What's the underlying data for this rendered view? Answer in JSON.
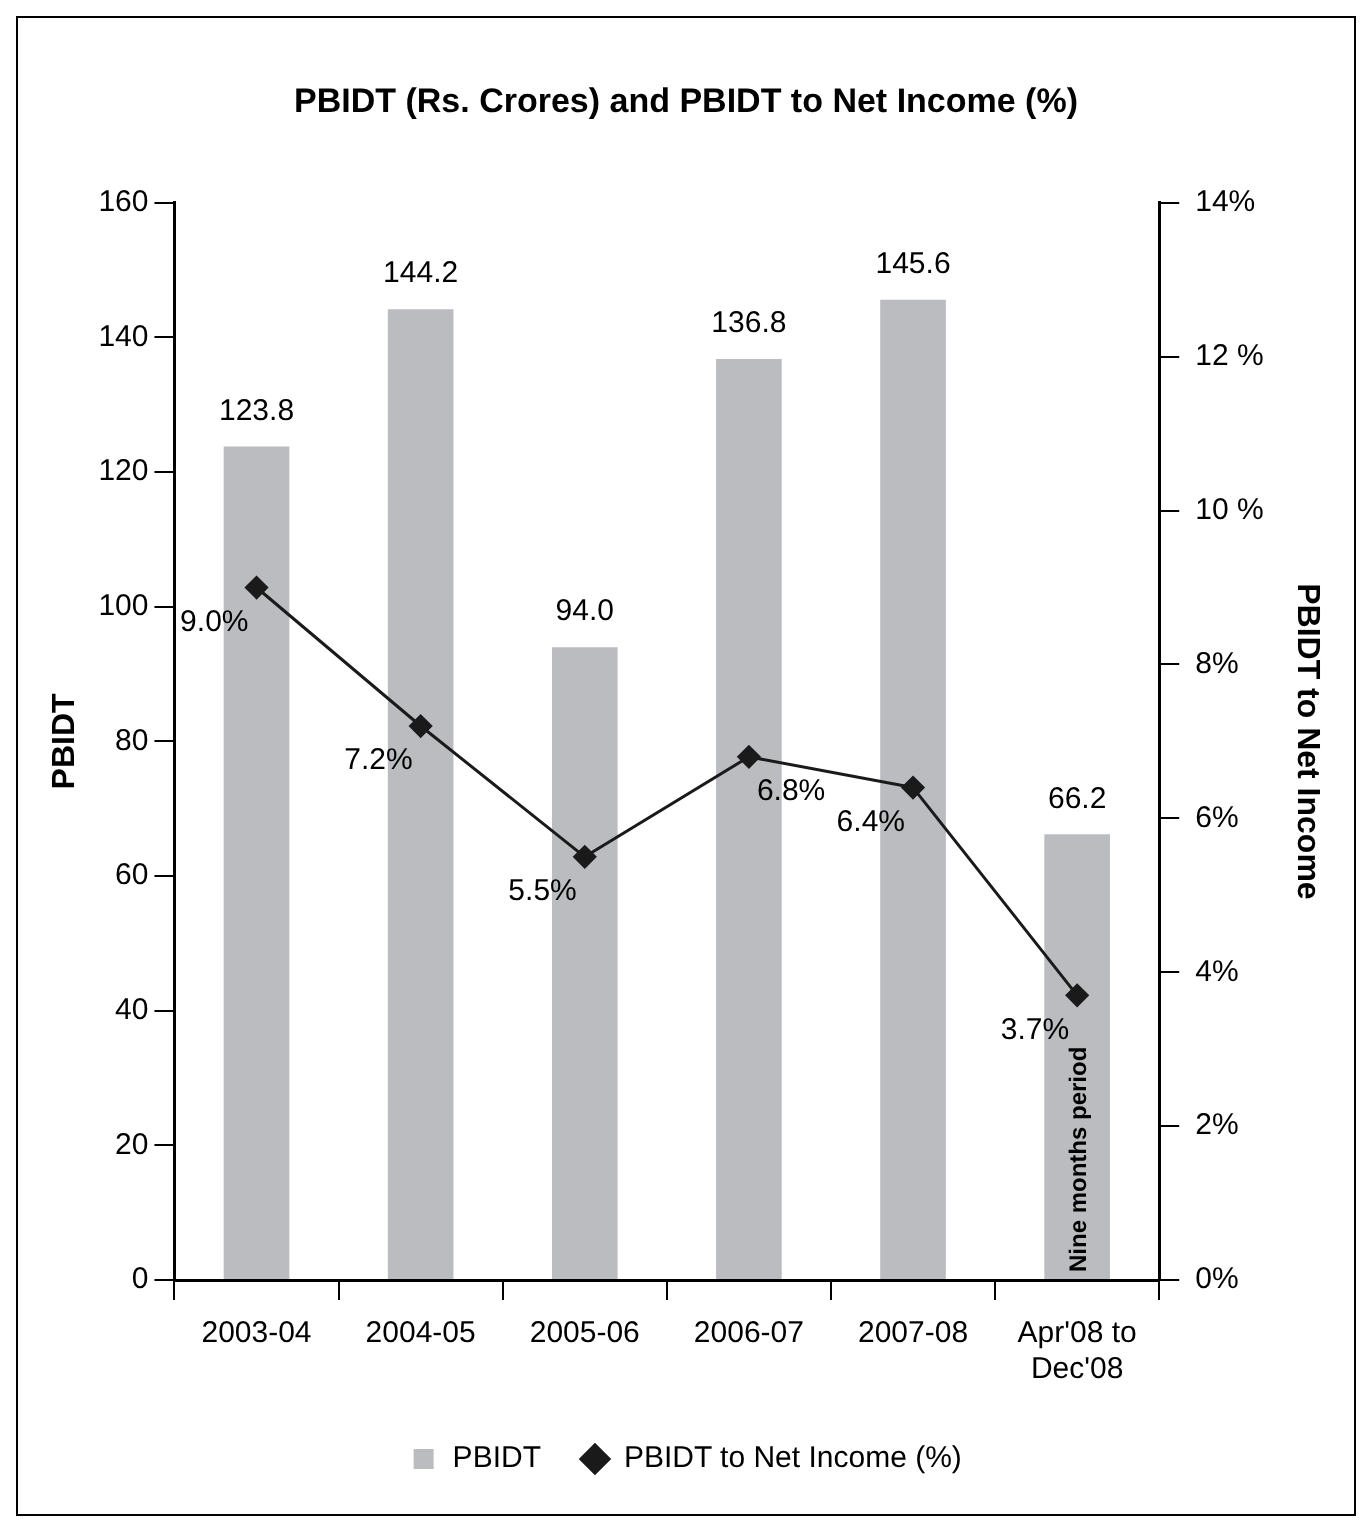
{
  "chart_data": {
    "type": "bar",
    "title": "PBIDT (Rs. Crores) and PBIDT to Net Income (%)",
    "ylabel": "PBIDT",
    "y2label": "PBIDT to Net Income",
    "categories": [
      "2003-04",
      "2004-05",
      "2005-06",
      "2006-07",
      "2007-08",
      "Apr'08 to Dec'08"
    ],
    "series": [
      {
        "name": "PBIDT",
        "color": "#bbbcc0",
        "values": [
          123.8,
          144.2,
          94.0,
          136.8,
          145.6,
          66.2
        ],
        "value_labels": [
          "123.8",
          "144.2",
          "94.0",
          "136.8",
          "145.6",
          "66.2"
        ]
      },
      {
        "name": "PBIDT to Net Income (%)",
        "type": "line",
        "axis": "y2",
        "color": "#1a1a1a",
        "marker": "diamond",
        "values": [
          9.0,
          7.2,
          5.5,
          6.8,
          6.4,
          3.7
        ],
        "value_labels": [
          "9.0%",
          "7.2%",
          "5.5%",
          "6.8%",
          "6.4%",
          "3.7%"
        ]
      }
    ],
    "ylim": [
      0,
      160
    ],
    "yticks": [
      0,
      20,
      40,
      60,
      80,
      100,
      120,
      140,
      160
    ],
    "y2lim": [
      0,
      14
    ],
    "y2ticks": [
      {
        "value": 0,
        "label": "0%"
      },
      {
        "value": 2,
        "label": "2%"
      },
      {
        "value": 4,
        "label": "4%"
      },
      {
        "value": 6,
        "label": "6%"
      },
      {
        "value": 8,
        "label": "8%"
      },
      {
        "value": 10,
        "label": "10 %"
      },
      {
        "value": 12,
        "label": "12 %"
      },
      {
        "value": 14,
        "label": "14%"
      }
    ],
    "annotations": [
      "Nine months period"
    ],
    "grid": false,
    "legend": "bottom"
  }
}
